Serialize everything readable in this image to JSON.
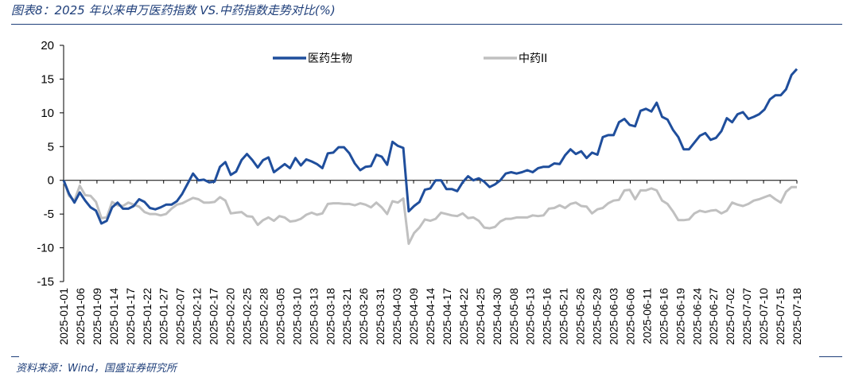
{
  "figure": {
    "title": "图表8：2025 年以来申万医药指数 VS.中药指数走势对比(%)",
    "source": "资料来源：Wind，国盛证券研究所"
  },
  "chart_data": {
    "type": "line",
    "title": "",
    "xlabel": "",
    "ylabel": "",
    "ylim": [
      -15,
      20
    ],
    "yticks": [
      -15,
      -10,
      -5,
      0,
      5,
      10,
      15,
      20
    ],
    "grid": false,
    "legend_position": "top",
    "x_tick_labels": [
      "2025-01-01",
      "2025-01-06",
      "2025-01-09",
      "2025-01-14",
      "2025-01-17",
      "2025-01-22",
      "2025-01-27",
      "2025-02-07",
      "2025-02-12",
      "2025-02-17",
      "2025-02-20",
      "2025-02-25",
      "2025-02-28",
      "2025-03-05",
      "2025-03-10",
      "2025-03-13",
      "2025-03-18",
      "2025-03-21",
      "2025-03-26",
      "2025-03-31",
      "2025-04-03",
      "2025-04-09",
      "2025-04-14",
      "2025-04-17",
      "2025-04-22",
      "2025-04-25",
      "2025-04-30",
      "2025-05-08",
      "2025-05-13",
      "2025-05-16",
      "2025-05-21",
      "2025-05-26",
      "2025-05-29",
      "2025-06-03",
      "2025-06-06",
      "2025-06-11",
      "2025-06-16",
      "2025-06-19",
      "2025-06-24",
      "2025-06-27",
      "2025-07-02",
      "2025-07-07",
      "2025-07-10",
      "2025-07-15",
      "2025-07-18"
    ],
    "series": [
      {
        "name": "医药生物",
        "color": "#1f4e9c",
        "values": [
          0,
          -2,
          -3.3,
          -1.8,
          -3,
          -4,
          -4.5,
          -6.4,
          -6,
          -4,
          -3.3,
          -4.2,
          -4.2,
          -3.8,
          -2.8,
          -3.2,
          -4.1,
          -4.3,
          -4,
          -3.6,
          -3.6,
          -3.1,
          -2,
          -0.5,
          1,
          0,
          0.1,
          -0.3,
          -0.2,
          2,
          2.7,
          0.8,
          1.3,
          3,
          3.9,
          3,
          1.9,
          3,
          3.4,
          1.2,
          1.8,
          2.4,
          1.8,
          3.3,
          2.2,
          3.1,
          2.8,
          2.4,
          1.8,
          4,
          4.1,
          4.9,
          4.9,
          4,
          2.5,
          1.5,
          2,
          2.1,
          3.8,
          3.5,
          2.3,
          5.7,
          5.1,
          4.8,
          -4.6,
          -3.8,
          -3.2,
          -1.4,
          -1.2,
          0,
          0,
          -1.3,
          -1.3,
          -1.6,
          -0.3,
          0.6,
          0,
          0.3,
          -0.2,
          -1,
          -0.6,
          0,
          1,
          1.2,
          1,
          1.2,
          1.5,
          1.2,
          1.8,
          2,
          2,
          2.5,
          2.4,
          3.7,
          4.6,
          3.9,
          4.3,
          3.3,
          4.1,
          3.8,
          6.4,
          6.7,
          6.7,
          8.6,
          9.1,
          8.2,
          8,
          10.3,
          10.6,
          10.2,
          11.5,
          9.4,
          9,
          7.5,
          6.4,
          4.6,
          4.6,
          5.6,
          6.6,
          7,
          6,
          6.3,
          7.3,
          9.2,
          8.6,
          9.8,
          10.1,
          9.1,
          9.4,
          9.8,
          10.5,
          12,
          12.6,
          12.6,
          13.5,
          15.6,
          16.5
        ]
      },
      {
        "name": "中药II",
        "color": "#c0c0c0",
        "values": [
          0,
          -2.3,
          -3,
          -0.8,
          -2.2,
          -2.3,
          -3.2,
          -5.6,
          -5.5,
          -3.2,
          -3.7,
          -3.8,
          -3.3,
          -3.6,
          -3.9,
          -4.7,
          -5,
          -5,
          -5.2,
          -5,
          -4.2,
          -3.6,
          -3.4,
          -3,
          -2.6,
          -2.8,
          -3.3,
          -3.3,
          -3.2,
          -2.5,
          -3,
          -4.9,
          -4.8,
          -4.7,
          -5.3,
          -5.4,
          -6.6,
          -5.9,
          -5.5,
          -6,
          -5.3,
          -5.5,
          -6.1,
          -6,
          -5.7,
          -5.1,
          -4.8,
          -5.1,
          -4.9,
          -3.5,
          -3.4,
          -3.4,
          -3.5,
          -3.5,
          -3.7,
          -3.4,
          -3.6,
          -4,
          -3.3,
          -4,
          -5,
          -3.1,
          -3.3,
          -2.7,
          -9.4,
          -7.8,
          -7,
          -5.8,
          -6,
          -5.7,
          -4.8,
          -5,
          -5.2,
          -5.3,
          -4.9,
          -5.6,
          -5.5,
          -6,
          -7,
          -7.1,
          -6.9,
          -6.1,
          -5.7,
          -5.7,
          -5.5,
          -5.5,
          -5.5,
          -5.2,
          -5.3,
          -5.2,
          -4.2,
          -4.1,
          -3.7,
          -4.1,
          -3.5,
          -3.3,
          -3.8,
          -3.9,
          -4.9,
          -4.3,
          -4.1,
          -3.4,
          -3,
          -2.9,
          -1.5,
          -1.4,
          -2.8,
          -1.5,
          -1.5,
          -1.2,
          -1.5,
          -3,
          -3.5,
          -4.6,
          -5.9,
          -5.9,
          -5.8,
          -4.9,
          -4.5,
          -4.7,
          -4.5,
          -4.4,
          -4.9,
          -4.5,
          -3.3,
          -3.6,
          -3.8,
          -3.5,
          -3,
          -2.8,
          -2.5,
          -2.2,
          -2.8,
          -3.3,
          -1.7,
          -1,
          -1
        ]
      }
    ]
  }
}
